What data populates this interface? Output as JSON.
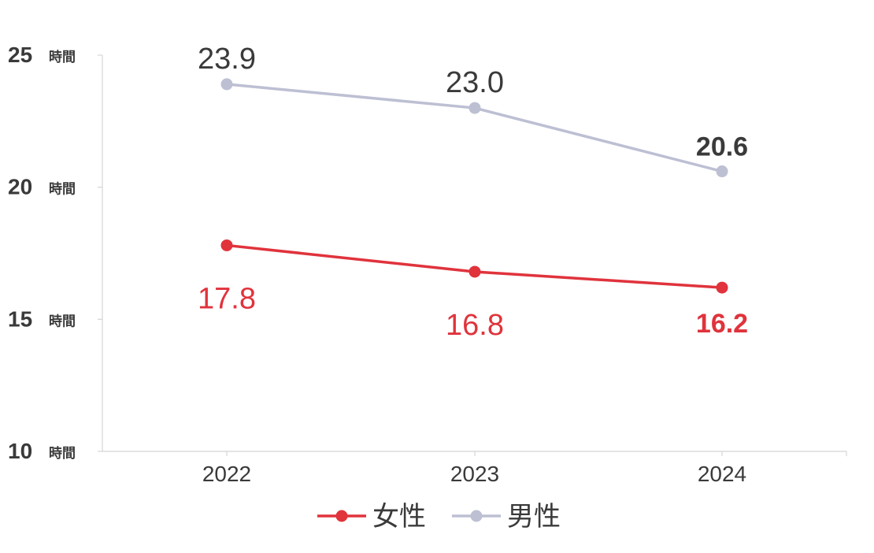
{
  "chart_data": {
    "type": "line",
    "categories": [
      "2022",
      "2023",
      "2024"
    ],
    "ylim": [
      10,
      25
    ],
    "yticks": [
      10,
      15,
      20,
      25
    ],
    "y_unit": "時間",
    "grid": false,
    "legend_position": "bottom",
    "series": [
      {
        "name": "女性",
        "color": "#e0333c",
        "label_color": "#e0333c",
        "values": [
          17.8,
          16.8,
          16.2
        ],
        "labels": [
          "17.8",
          "16.8",
          "16.2"
        ],
        "label_position": "below"
      },
      {
        "name": "男性",
        "color": "#bdbfd3",
        "label_color": "#3a3a3a",
        "values": [
          23.9,
          23.0,
          20.6
        ],
        "labels": [
          "23.9",
          "23.0",
          "20.6"
        ],
        "label_position": "above"
      }
    ],
    "bold_last_label": true
  }
}
